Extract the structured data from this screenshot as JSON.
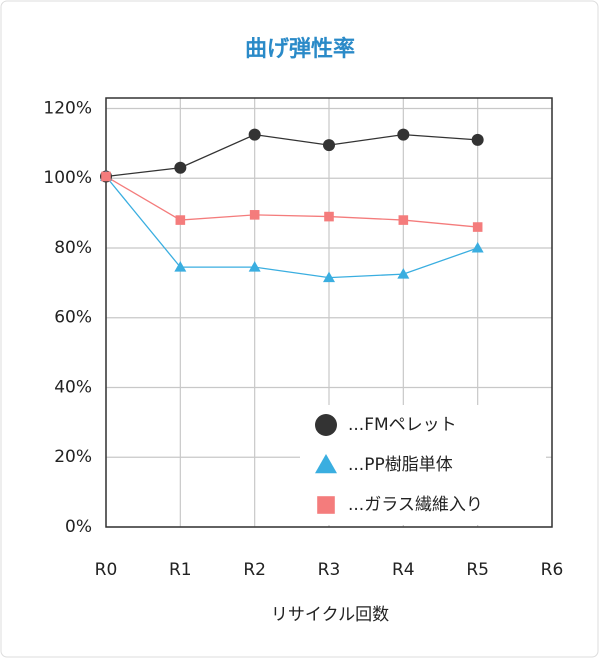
{
  "chart_data": {
    "type": "line",
    "title": "曲げ弾性率",
    "x_label": "リサイクル回数",
    "categories": [
      "R0",
      "R1",
      "R2",
      "R3",
      "R4",
      "R5",
      "R6"
    ],
    "series": [
      {
        "name": "...FMペレット",
        "color": "#333333",
        "marker": "circle",
        "values": [
          100.5,
          103,
          112.5,
          109.5,
          112.5,
          111,
          null
        ]
      },
      {
        "name": "...PP樹脂単体",
        "color": "#3aaee0",
        "marker": "triangle",
        "values": [
          100.5,
          74.5,
          74.5,
          71.5,
          72.5,
          80,
          null
        ]
      },
      {
        "name": "...ガラス繊維入り",
        "color": "#f47c7c",
        "marker": "square",
        "values": [
          100.5,
          88,
          89.5,
          89,
          88,
          86,
          null
        ]
      }
    ],
    "ylim": [
      0,
      123
    ],
    "yticks": [
      {
        "value": 0,
        "label": "0%"
      },
      {
        "value": 20,
        "label": "20%"
      },
      {
        "value": 40,
        "label": "40%"
      },
      {
        "value": 60,
        "label": "60%"
      },
      {
        "value": 80,
        "label": "80%"
      },
      {
        "value": 100,
        "label": "100%"
      },
      {
        "value": 120,
        "label": "120%"
      }
    ],
    "grid": true,
    "legend": "lower right"
  }
}
